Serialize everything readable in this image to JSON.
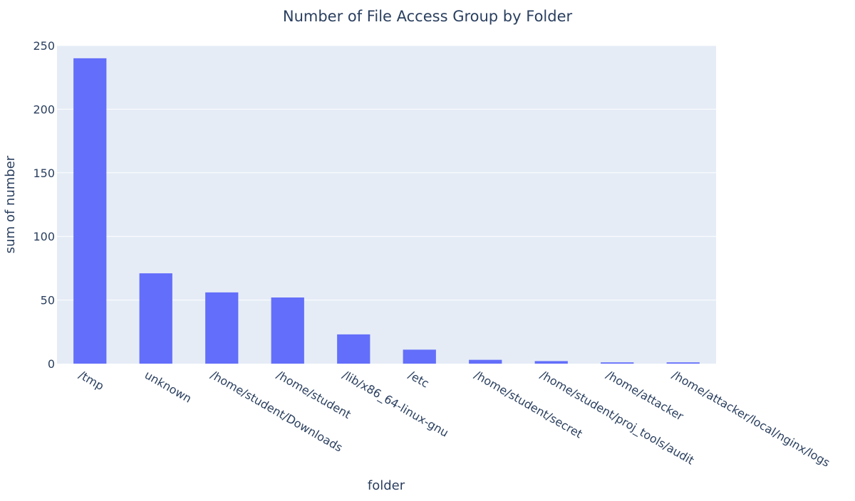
{
  "chart_data": {
    "type": "bar",
    "title": "Number of File Access Group by Folder",
    "xlabel": "folder",
    "ylabel": "sum of number",
    "categories": [
      "/tmp",
      "unknown",
      "/home/student/Downloads",
      "/home/student",
      "/lib/x86_64-linux-gnu",
      "/etc",
      "/home/student/secret",
      "/home/student/proj_tools/audit",
      "/home/attacker",
      "/home/attacker/local/nginx/logs"
    ],
    "values": [
      240,
      71,
      56,
      52,
      23,
      11,
      3,
      2,
      1,
      1
    ],
    "ylim": [
      0,
      250
    ],
    "yticks": [
      0,
      50,
      100,
      150,
      200,
      250
    ],
    "grid": true,
    "bar_color": "#636efa",
    "plot_bg": "#e5ecf6",
    "grid_color": "#ffffff",
    "text_color": "#2a3f5f"
  }
}
